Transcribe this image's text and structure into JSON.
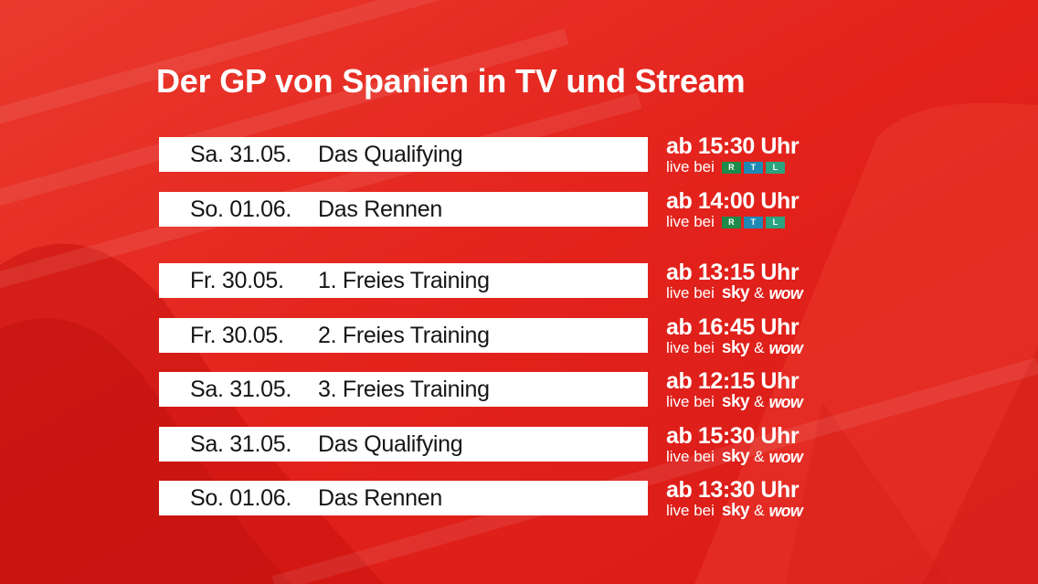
{
  "title": "Der GP von Spanien in TV und Stream",
  "broadcasters": {
    "rtl": [
      "R",
      "T",
      "L"
    ],
    "sky": "sky",
    "amp": "&",
    "wow": "wow"
  },
  "live_prefix": "live bei",
  "rows": [
    {
      "date": "Sa. 31.05.",
      "event": "Das Qualifying",
      "time": "ab 15:30 Uhr",
      "broadcaster": "rtl"
    },
    {
      "date": "So. 01.06.",
      "event": "Das Rennen",
      "time": "ab 14:00 Uhr",
      "broadcaster": "rtl"
    },
    {
      "date": "Fr. 30.05.",
      "event": "1. Freies Training",
      "time": "ab 13:15 Uhr",
      "broadcaster": "sky-wow"
    },
    {
      "date": "Fr. 30.05.",
      "event": "2. Freies Training",
      "time": "ab 16:45 Uhr",
      "broadcaster": "sky-wow"
    },
    {
      "date": "Sa. 31.05.",
      "event": "3. Freies Training",
      "time": "ab 12:15 Uhr",
      "broadcaster": "sky-wow"
    },
    {
      "date": "Sa. 31.05.",
      "event": "Das Qualifying",
      "time": "ab 15:30 Uhr",
      "broadcaster": "sky-wow"
    },
    {
      "date": "So. 01.06.",
      "event": "Das Rennen",
      "time": "ab 13:30 Uhr",
      "broadcaster": "sky-wow"
    }
  ],
  "colors": {
    "background": "#e3201b",
    "bar": "#ffffff",
    "bar_text": "#151515",
    "rtl_r": "#1e8a4a",
    "rtl_t": "#1e89b5",
    "rtl_l": "#2aa37e"
  }
}
